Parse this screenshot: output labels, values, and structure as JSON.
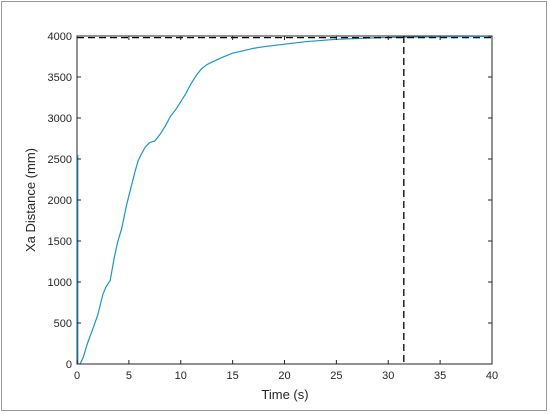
{
  "chart_data": {
    "type": "line",
    "title": "",
    "xlabel": "Time (s)",
    "ylabel": "Xa Distance  (mm)",
    "xlim": [
      0,
      40
    ],
    "ylim": [
      0,
      4000
    ],
    "xticks": [
      0,
      5,
      10,
      15,
      20,
      25,
      30,
      35,
      40
    ],
    "yticks": [
      0,
      500,
      1000,
      1500,
      2000,
      2500,
      3000,
      3500,
      4000
    ],
    "grid": false,
    "legend": "none",
    "series": [
      {
        "color": "#1a95c9",
        "x": [
          0.3,
          0.6,
          1.0,
          1.5,
          2.0,
          2.5,
          2.8,
          3.2,
          3.6,
          3.9,
          4.3,
          4.8,
          5.2,
          5.6,
          5.9,
          6.2,
          6.6,
          7.0,
          7.5,
          8.0,
          8.5,
          9.0,
          9.5,
          10.0,
          10.5,
          11.0,
          11.5,
          12.0,
          12.5,
          13.0,
          14.0,
          15.0,
          16.0,
          17.0,
          18.0,
          20.0,
          22.0,
          25.0,
          28.0,
          31.0,
          35.0,
          40.0
        ],
        "y": [
          0,
          80,
          250,
          420,
          600,
          850,
          940,
          1020,
          1300,
          1480,
          1650,
          1950,
          2150,
          2350,
          2480,
          2560,
          2650,
          2700,
          2720,
          2800,
          2900,
          3020,
          3100,
          3200,
          3300,
          3420,
          3520,
          3600,
          3650,
          3680,
          3740,
          3790,
          3820,
          3850,
          3870,
          3900,
          3930,
          3960,
          3975,
          3985,
          3990,
          3995
        ]
      }
    ],
    "reference_lines": [
      {
        "type": "horizontal",
        "y": 3980,
        "color": "#000000",
        "dash": "dashed"
      },
      {
        "type": "vertical",
        "x": 31.5,
        "color": "#000000",
        "dash": "dashed"
      }
    ],
    "initial_spike": {
      "x": 0.05,
      "y": 2550,
      "color": "#1a6f99"
    }
  }
}
